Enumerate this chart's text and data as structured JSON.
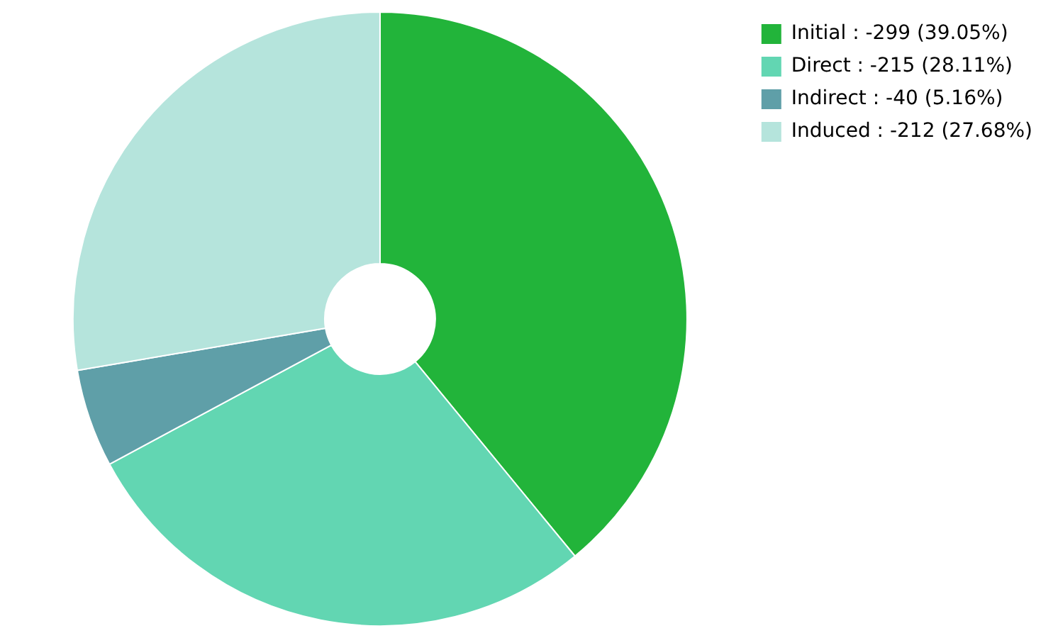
{
  "chart_data": {
    "type": "donut",
    "categories": [
      "Initial",
      "Direct",
      "Indirect",
      "Induced"
    ],
    "values": [
      39.05,
      28.11,
      5.16,
      27.68
    ],
    "value_labels": [
      "-299 (39.05%)",
      "-215 (28.11%)",
      "-40 (5.16%)",
      "-212 (27.68%)"
    ],
    "colors": [
      "#22b43a",
      "#62d6b2",
      "#5f9fa8",
      "#b5e4dc"
    ],
    "legend": "top right"
  }
}
